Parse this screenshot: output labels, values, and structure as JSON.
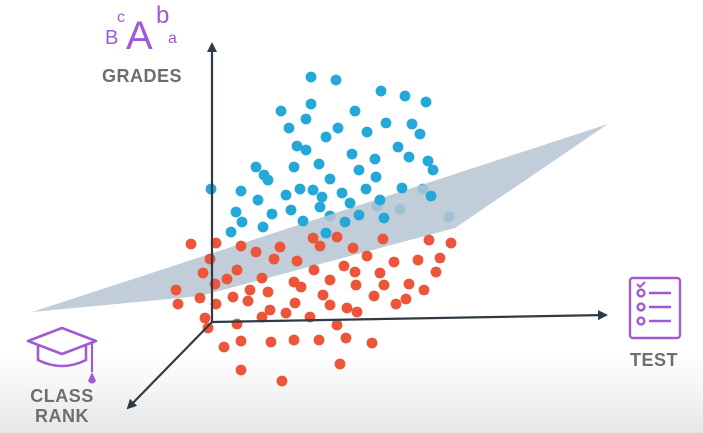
{
  "diagram": {
    "axes": {
      "vertical": "GRADES",
      "horizontal": "TEST",
      "depth_line1": "CLASS",
      "depth_line2": "RANK"
    },
    "icons": {
      "grades": "letter-grades-icon",
      "test": "test-checklist-icon",
      "class_rank": "graduation-cap-icon"
    },
    "grade_letters": {
      "small_b": "B",
      "small_c": "c",
      "big_a": "A",
      "small_b2": "b",
      "small_a": "a"
    },
    "colors": {
      "above_plane": "#23a8d8",
      "below_plane": "#ec553a",
      "plane": "#b6c4d2",
      "axis": "#2e3b45",
      "icon": "#a05ad6",
      "label_text": "#6e6e6e"
    }
  }
}
